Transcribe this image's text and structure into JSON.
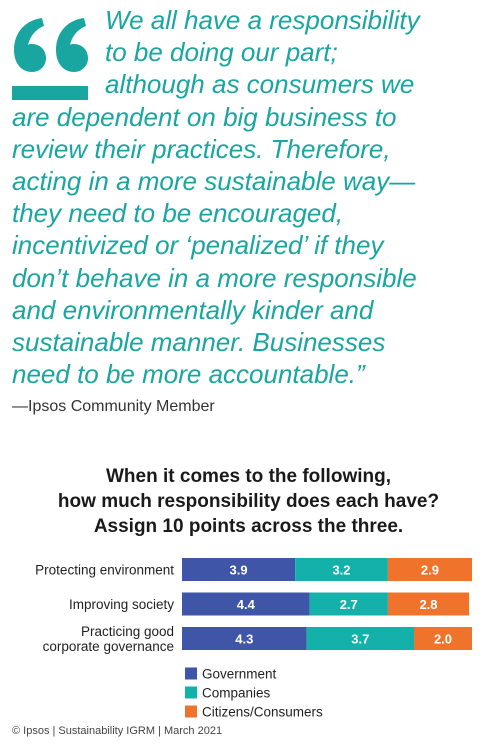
{
  "quote": {
    "lines": [
      "We all have a responsibility",
      "to be doing our part;",
      "although as consumers we",
      "are dependent on big business to",
      "review their practices. Therefore,",
      "acting in a more sustainable way—",
      "they need to be encouraged,",
      "incentivized or ‘penalized’ if they",
      "don’t behave in a more responsible",
      "and environmentally kinder and",
      "sustainable manner. Businesses",
      "need to be more accountable.”"
    ],
    "attribution": "—Ipsos Community Member"
  },
  "colors": {
    "accent": "#1aa6a0",
    "government": "#3f55a8",
    "companies": "#14b1ab",
    "citizens": "#f0732b"
  },
  "chart_data": {
    "type": "bar",
    "orientation": "horizontal",
    "stacked": true,
    "title": [
      "When it comes to the following,",
      "how much responsibility does each have?",
      "Assign 10 points across the three."
    ],
    "categories": [
      "Protecting environment",
      "Improving society",
      "Practicing good corporate governance"
    ],
    "category_label_lines": [
      [
        "Protecting environment"
      ],
      [
        "Improving society"
      ],
      [
        "Practicing good",
        "corporate governance"
      ]
    ],
    "series": [
      {
        "name": "Government",
        "values": [
          3.9,
          4.4,
          4.3
        ],
        "color": "#3f55a8"
      },
      {
        "name": "Companies",
        "values": [
          3.2,
          2.7,
          3.7
        ],
        "color": "#14b1ab"
      },
      {
        "name": "Citizens/Consumers",
        "values": [
          2.9,
          2.8,
          2.0
        ],
        "color": "#f0732b"
      }
    ],
    "xlim": [
      0,
      10
    ],
    "legend_position": "bottom-left"
  },
  "footer": "© Ipsos | Sustainability IGRM | March 2021"
}
